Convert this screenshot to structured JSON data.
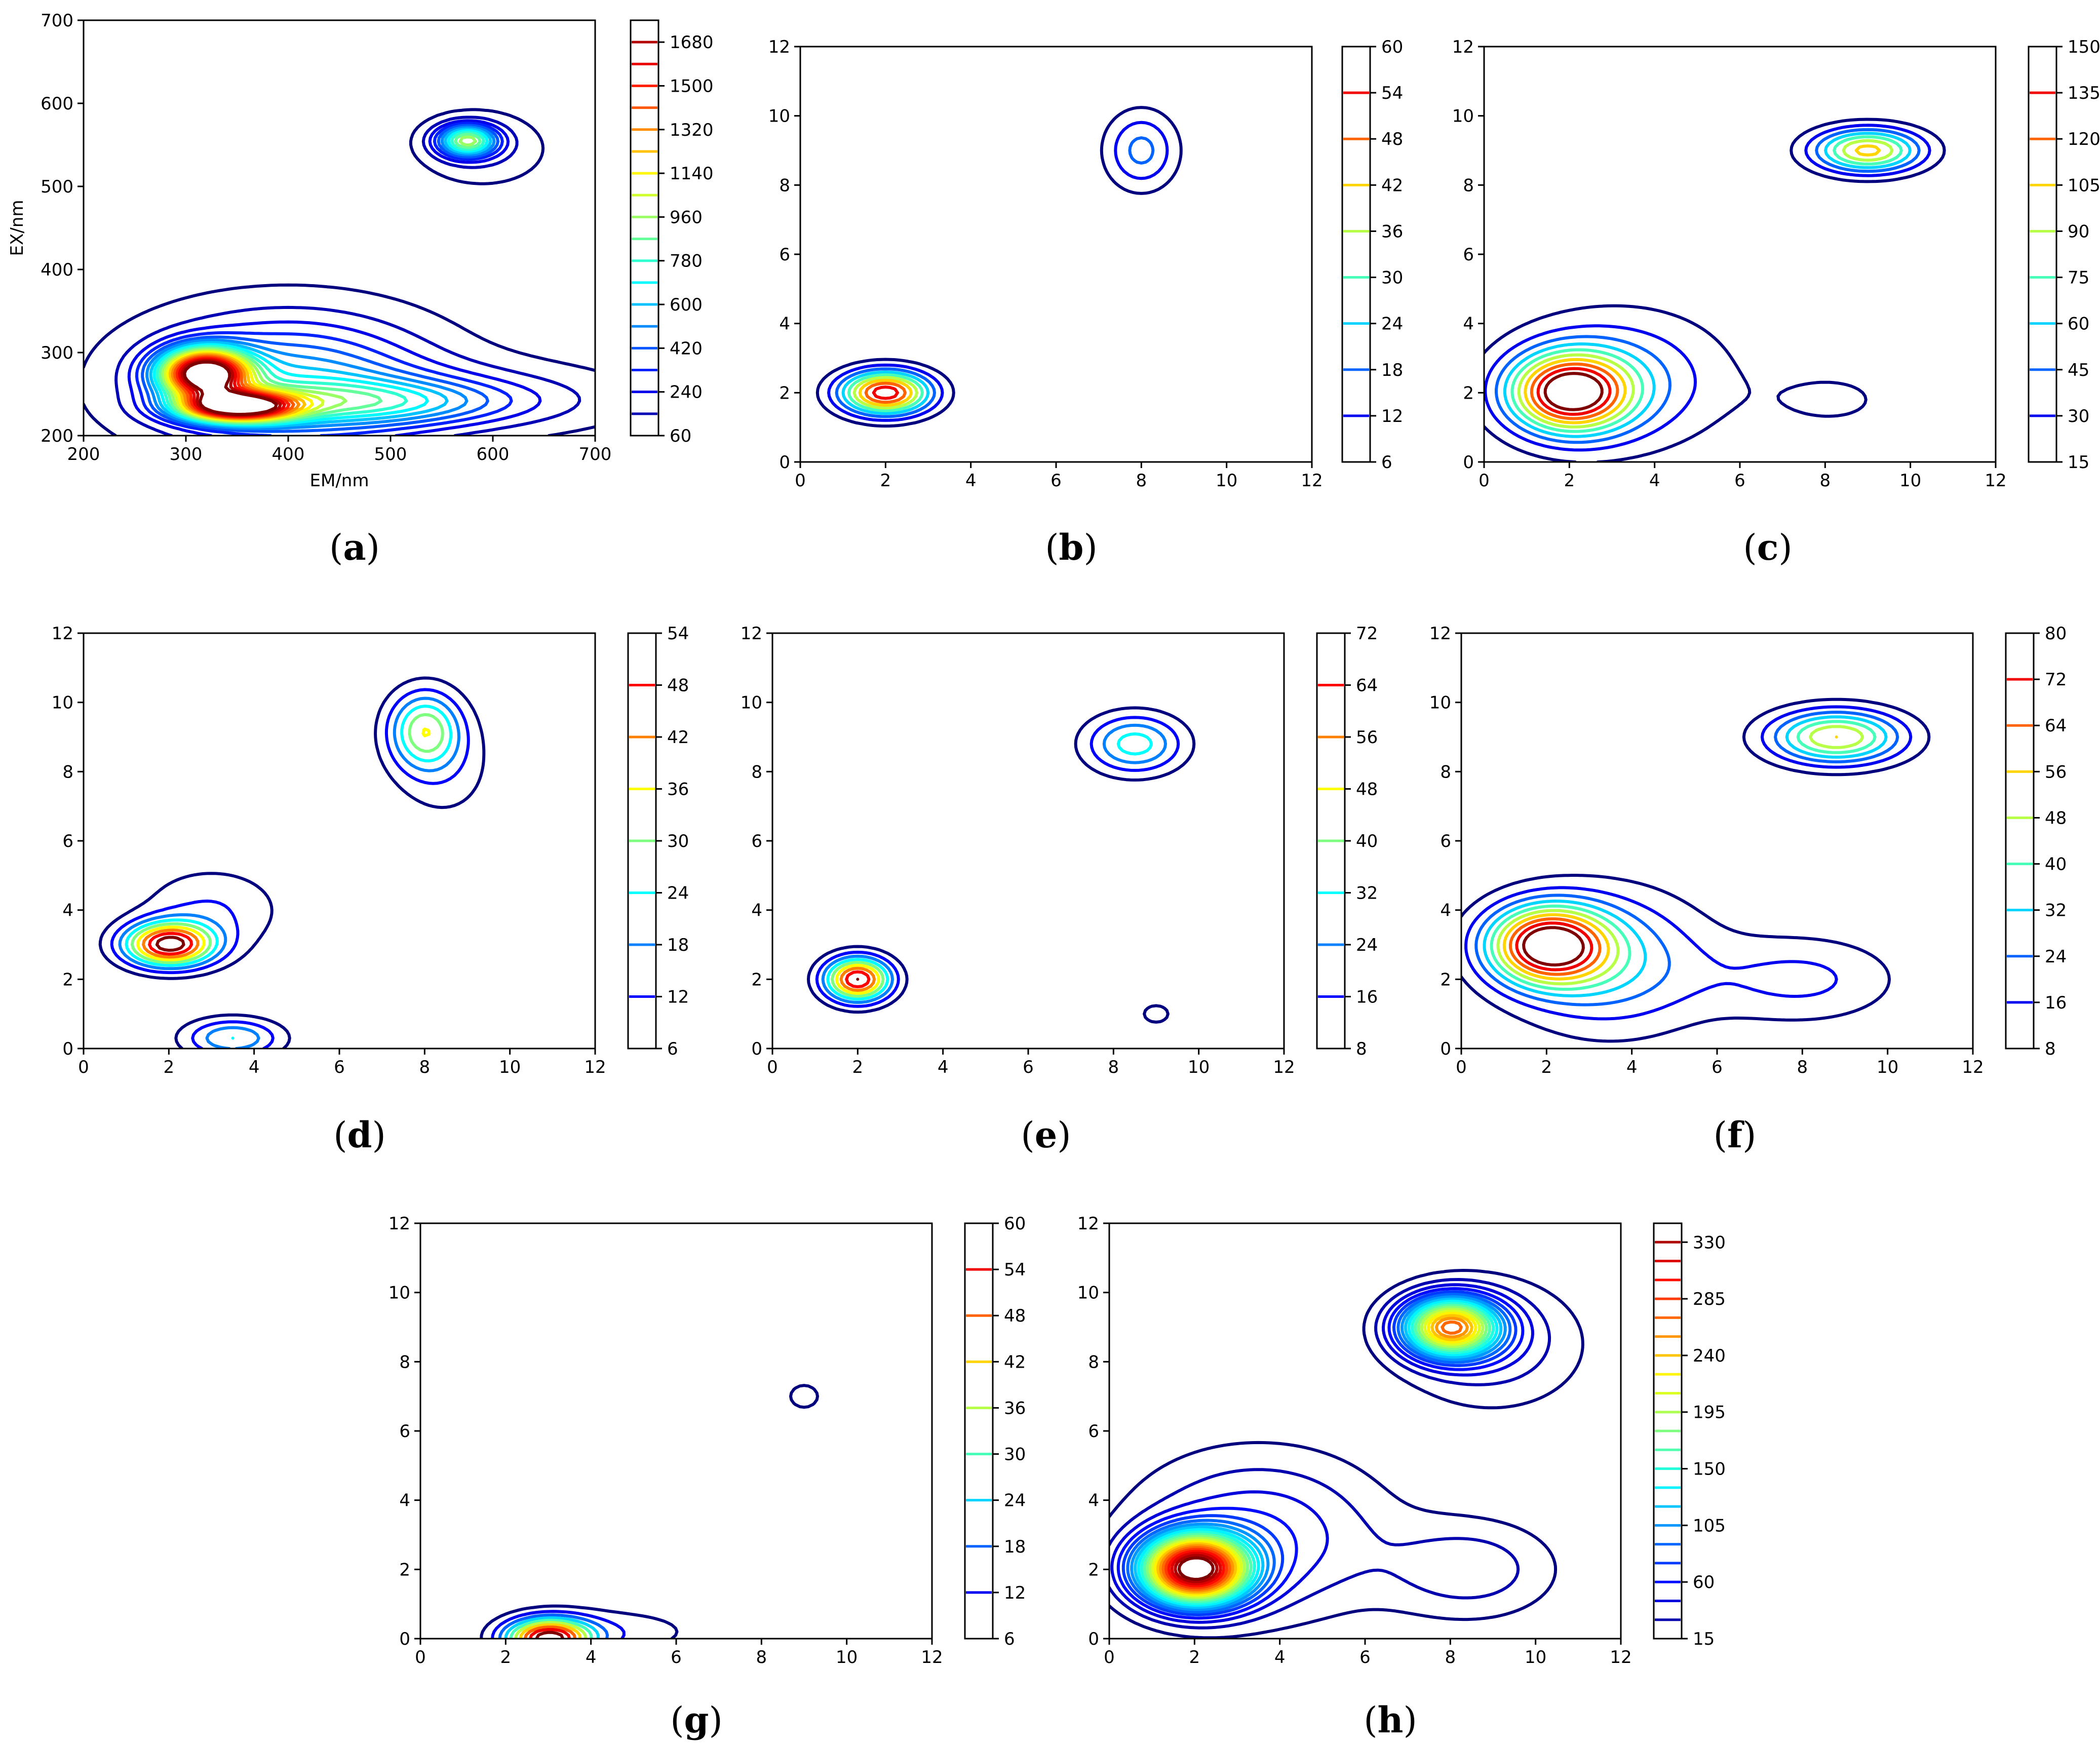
{
  "figure": {
    "panels": [
      {
        "id": "a",
        "label_text": "(a)",
        "label_letter": "a"
      },
      {
        "id": "b",
        "label_text": "(b)",
        "label_letter": "b"
      },
      {
        "id": "c",
        "label_text": "(c)",
        "label_letter": "c"
      },
      {
        "id": "d",
        "label_text": "(d)",
        "label_letter": "d"
      },
      {
        "id": "e",
        "label_text": "(e)",
        "label_letter": "e"
      },
      {
        "id": "f",
        "label_text": "(f)",
        "label_letter": "f"
      },
      {
        "id": "g",
        "label_text": "(g)",
        "label_letter": "g"
      },
      {
        "id": "h",
        "label_text": "(h)",
        "label_letter": "h"
      }
    ]
  },
  "colormap": [
    "#00007f",
    "#0000ff",
    "#007fff",
    "#00ffff",
    "#7fff7f",
    "#ffff00",
    "#ff7f00",
    "#ff0000",
    "#7f0000"
  ],
  "chart_data": [
    {
      "id": "a",
      "type": "contour",
      "title": "",
      "xlabel": "EM/nm",
      "ylabel": "EX/nm",
      "xlim": [
        200,
        700
      ],
      "ylim": [
        200,
        700
      ],
      "xticks": [
        200,
        300,
        400,
        500,
        600,
        700
      ],
      "yticks": [
        200,
        300,
        400,
        500,
        600,
        700
      ],
      "colorbar": {
        "min": 60,
        "max": 1770,
        "ticks": [
          60,
          240,
          420,
          600,
          780,
          960,
          1140,
          1320,
          1500,
          1680
        ],
        "levels": [
          60,
          150,
          240,
          330,
          420,
          510,
          600,
          690,
          780,
          870,
          960,
          1050,
          1140,
          1230,
          1320,
          1410,
          1500,
          1590,
          1680,
          1770
        ]
      },
      "peaks": [
        {
          "x": 318,
          "y": 275,
          "amp": 1770,
          "sx": 30,
          "sy": 20
        },
        {
          "x": 350,
          "y": 235,
          "amp": 1650,
          "sx": 38,
          "sy": 12
        },
        {
          "x": 400,
          "y": 265,
          "amp": 560,
          "sx": 95,
          "sy": 55
        },
        {
          "x": 480,
          "y": 240,
          "amp": 380,
          "sx": 90,
          "sy": 18
        },
        {
          "x": 560,
          "y": 245,
          "amp": 200,
          "sx": 120,
          "sy": 30
        },
        {
          "x": 575,
          "y": 555,
          "amp": 900,
          "sx": 20,
          "sy": 13
        },
        {
          "x": 590,
          "y": 545,
          "amp": 140,
          "sx": 45,
          "sy": 32
        }
      ]
    },
    {
      "id": "b",
      "type": "contour",
      "title": "",
      "xlabel": "",
      "ylabel": "",
      "xlim": [
        0,
        12
      ],
      "ylim": [
        0,
        12
      ],
      "xticks": [
        0,
        2,
        4,
        6,
        8,
        10,
        12
      ],
      "yticks": [
        0,
        2,
        4,
        6,
        8,
        10,
        12
      ],
      "colorbar": {
        "min": 6,
        "max": 60,
        "ticks": [
          6,
          12,
          18,
          24,
          30,
          36,
          42,
          48,
          54,
          60
        ],
        "levels": [
          6,
          12,
          18,
          24,
          30,
          36,
          42,
          48,
          54,
          60
        ]
      },
      "peaks": [
        {
          "x": 2,
          "y": 2,
          "amp": 58,
          "sx": 0.75,
          "sy": 0.45
        },
        {
          "x": 8,
          "y": 9,
          "amp": 20,
          "sx": 0.6,
          "sy": 0.8
        }
      ]
    },
    {
      "id": "c",
      "type": "contour",
      "title": "",
      "xlabel": "",
      "ylabel": "",
      "xlim": [
        0,
        12
      ],
      "ylim": [
        0,
        12
      ],
      "xticks": [
        0,
        2,
        4,
        6,
        8,
        10,
        12
      ],
      "yticks": [
        0,
        2,
        4,
        6,
        8,
        10,
        12
      ],
      "colorbar": {
        "min": 15,
        "max": 150,
        "ticks": [
          15,
          30,
          45,
          60,
          75,
          90,
          105,
          120,
          135,
          150
        ],
        "levels": [
          15,
          30,
          45,
          60,
          75,
          90,
          105,
          120,
          135,
          150
        ]
      },
      "peaks": [
        {
          "x": 2,
          "y": 2,
          "amp": 145,
          "sx": 1.0,
          "sy": 0.8
        },
        {
          "x": 3.2,
          "y": 2.4,
          "amp": 45,
          "sx": 1.8,
          "sy": 1.4
        },
        {
          "x": 9,
          "y": 9,
          "amp": 110,
          "sx": 0.9,
          "sy": 0.45
        },
        {
          "x": 8.2,
          "y": 1.8,
          "amp": 18,
          "sx": 1.2,
          "sy": 0.7
        }
      ]
    },
    {
      "id": "d",
      "type": "contour",
      "title": "",
      "xlabel": "",
      "ylabel": "",
      "xlim": [
        0,
        12
      ],
      "ylim": [
        0,
        12
      ],
      "xticks": [
        0,
        2,
        4,
        6,
        8,
        10,
        12
      ],
      "yticks": [
        0,
        2,
        4,
        6,
        8,
        10,
        12
      ],
      "colorbar": {
        "min": 6,
        "max": 54,
        "ticks": [
          6,
          12,
          18,
          24,
          30,
          36,
          42,
          48,
          54
        ],
        "levels": [
          6,
          12,
          18,
          24,
          30,
          36,
          42,
          48,
          54
        ]
      },
      "peaks": [
        {
          "x": 2,
          "y": 3,
          "amp": 54,
          "sx": 0.75,
          "sy": 0.45
        },
        {
          "x": 3,
          "y": 4,
          "amp": 12,
          "sx": 1.2,
          "sy": 0.9
        },
        {
          "x": 8,
          "y": 9.2,
          "amp": 32,
          "sx": 0.6,
          "sy": 0.8
        },
        {
          "x": 8.5,
          "y": 8,
          "amp": 8,
          "sx": 0.9,
          "sy": 1.2
        },
        {
          "x": 3.5,
          "y": 0.3,
          "amp": 24,
          "sx": 0.8,
          "sy": 0.4
        }
      ]
    },
    {
      "id": "e",
      "type": "contour",
      "title": "",
      "xlabel": "",
      "ylabel": "",
      "xlim": [
        0,
        12
      ],
      "ylim": [
        0,
        12
      ],
      "xticks": [
        0,
        2,
        4,
        6,
        8,
        10,
        12
      ],
      "yticks": [
        0,
        2,
        4,
        6,
        8,
        10,
        12
      ],
      "colorbar": {
        "min": 8,
        "max": 72,
        "ticks": [
          8,
          16,
          24,
          32,
          40,
          48,
          56,
          64,
          72
        ],
        "levels": [
          8,
          16,
          24,
          32,
          40,
          48,
          56,
          64,
          72
        ]
      },
      "peaks": [
        {
          "x": 2,
          "y": 2,
          "amp": 72,
          "sx": 0.55,
          "sy": 0.45
        },
        {
          "x": 8.5,
          "y": 8.8,
          "amp": 36,
          "sx": 0.8,
          "sy": 0.6
        },
        {
          "x": 9,
          "y": 1,
          "amp": 11,
          "sx": 0.35,
          "sy": 0.3
        }
      ]
    },
    {
      "id": "f",
      "type": "contour",
      "title": "",
      "xlabel": "",
      "ylabel": "",
      "xlim": [
        0,
        12
      ],
      "ylim": [
        0,
        12
      ],
      "xticks": [
        0,
        2,
        4,
        6,
        8,
        10,
        12
      ],
      "yticks": [
        0,
        2,
        4,
        6,
        8,
        10,
        12
      ],
      "colorbar": {
        "min": 8,
        "max": 80,
        "ticks": [
          8,
          16,
          24,
          32,
          40,
          48,
          56,
          64,
          72,
          80
        ],
        "levels": [
          8,
          16,
          24,
          32,
          40,
          48,
          56,
          64,
          72,
          80
        ]
      },
      "peaks": [
        {
          "x": 2,
          "y": 3,
          "amp": 78,
          "sx": 1.0,
          "sy": 0.8
        },
        {
          "x": 3.5,
          "y": 2.5,
          "amp": 30,
          "sx": 1.6,
          "sy": 1.4
        },
        {
          "x": 8.8,
          "y": 9,
          "amp": 56,
          "sx": 1.1,
          "sy": 0.55
        },
        {
          "x": 8,
          "y": 2,
          "amp": 18,
          "sx": 1.6,
          "sy": 0.9
        }
      ]
    },
    {
      "id": "g",
      "type": "contour",
      "title": "",
      "xlabel": "",
      "ylabel": "",
      "xlim": [
        0,
        12
      ],
      "ylim": [
        0,
        12
      ],
      "xticks": [
        0,
        2,
        4,
        6,
        8,
        10,
        12
      ],
      "yticks": [
        0,
        2,
        4,
        6,
        8,
        10,
        12
      ],
      "colorbar": {
        "min": 6,
        "max": 60,
        "ticks": [
          6,
          12,
          18,
          24,
          30,
          36,
          42,
          48,
          54,
          60
        ],
        "levels": [
          6,
          12,
          18,
          24,
          30,
          36,
          42,
          48,
          54,
          60
        ]
      },
      "peaks": [
        {
          "x": 3,
          "y": 0,
          "amp": 60,
          "sx": 0.7,
          "sy": 0.4
        },
        {
          "x": 4.5,
          "y": 0.2,
          "amp": 10,
          "sx": 1.5,
          "sy": 0.5
        },
        {
          "x": 9,
          "y": 7,
          "amp": 9,
          "sx": 0.35,
          "sy": 0.35
        }
      ]
    },
    {
      "id": "h",
      "type": "contour",
      "title": "",
      "xlabel": "",
      "ylabel": "",
      "xlim": [
        0,
        12
      ],
      "ylim": [
        0,
        12
      ],
      "xticks": [
        0,
        2,
        4,
        6,
        8,
        10,
        12
      ],
      "yticks": [
        0,
        2,
        4,
        6,
        8,
        10,
        12
      ],
      "colorbar": {
        "min": 15,
        "max": 345,
        "ticks": [
          15,
          60,
          105,
          150,
          195,
          240,
          285,
          330
        ],
        "levels": [
          15,
          30,
          45,
          60,
          75,
          90,
          105,
          120,
          135,
          150,
          165,
          180,
          195,
          210,
          225,
          240,
          255,
          270,
          285,
          300,
          315,
          330,
          345
        ]
      },
      "peaks": [
        {
          "x": 2,
          "y": 2,
          "amp": 340,
          "sx": 0.9,
          "sy": 0.7
        },
        {
          "x": 3.5,
          "y": 3,
          "amp": 60,
          "sx": 2.0,
          "sy": 1.6
        },
        {
          "x": 8,
          "y": 9,
          "amp": 250,
          "sx": 0.8,
          "sy": 0.6
        },
        {
          "x": 9,
          "y": 8.5,
          "amp": 40,
          "sx": 1.5,
          "sy": 1.3
        },
        {
          "x": 8.5,
          "y": 2,
          "amp": 40,
          "sx": 1.4,
          "sy": 1.0
        }
      ]
    }
  ]
}
